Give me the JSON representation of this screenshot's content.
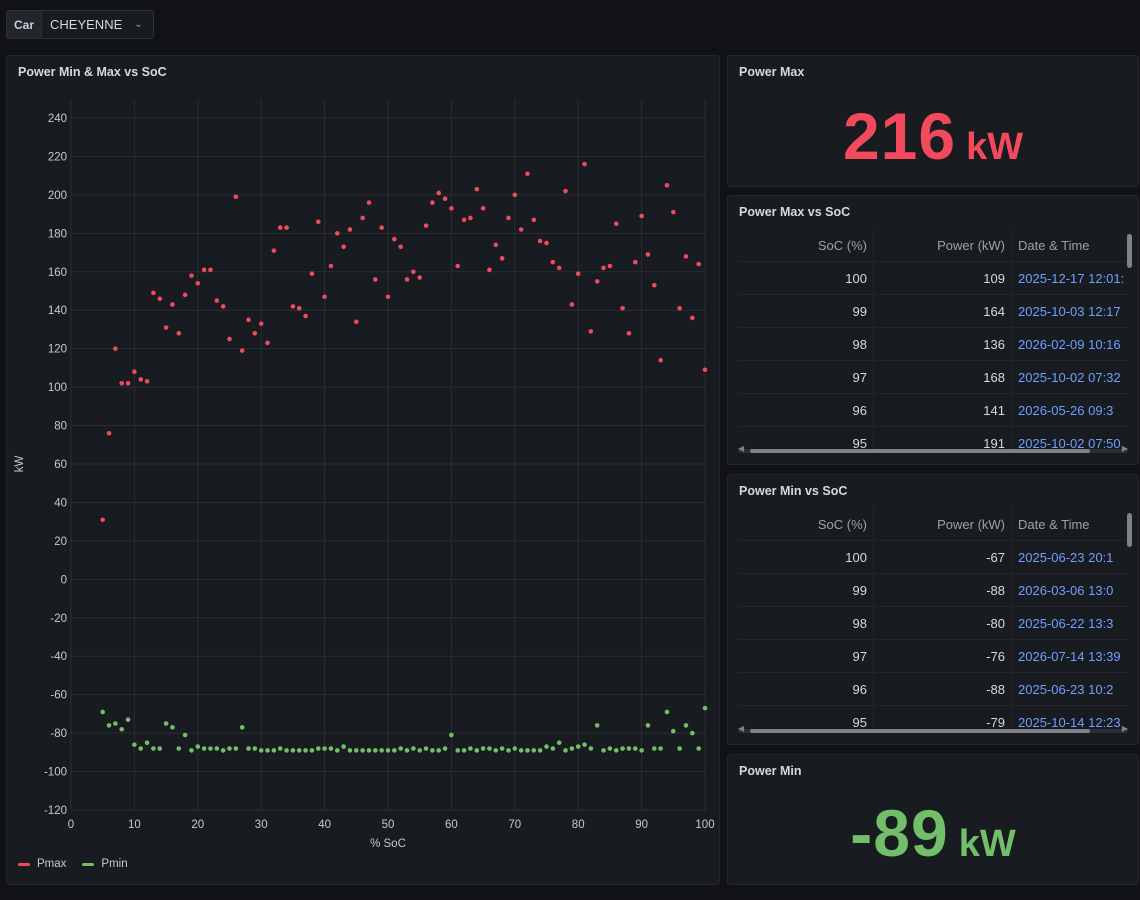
{
  "variable": {
    "label": "Car",
    "value": "CHEYENNE",
    "chevron_icon": "chevron-down-icon"
  },
  "panels": {
    "scatter": {
      "title": "Power Min & Max vs SoC"
    },
    "power_max": {
      "title": "Power Max",
      "value": "216",
      "unit": "kW",
      "color": "#f2495c"
    },
    "power_min": {
      "title": "Power Min",
      "value": "-89",
      "unit": "kW",
      "color": "#73bf69"
    },
    "table_max": {
      "title": "Power Max vs SoC",
      "headers": [
        "SoC (%)",
        "Power (kW)",
        "Date & Time"
      ],
      "rows": [
        [
          "100",
          "109",
          "2025-12-17 12:01:"
        ],
        [
          "99",
          "164",
          "2025-10-03 12:17"
        ],
        [
          "98",
          "136",
          "2026-02-09 10:16"
        ],
        [
          "97",
          "168",
          "2025-10-02 07:32"
        ],
        [
          "96",
          "141",
          "2026-05-26 09:3"
        ],
        [
          "95",
          "191",
          "2025-10-02 07:50"
        ]
      ]
    },
    "table_min": {
      "title": "Power Min vs SoC",
      "headers": [
        "SoC (%)",
        "Power (kW)",
        "Date & Time"
      ],
      "rows": [
        [
          "100",
          "-67",
          "2025-06-23 20:1"
        ],
        [
          "99",
          "-88",
          "2026-03-06 13:0"
        ],
        [
          "98",
          "-80",
          "2025-06-22 13:3"
        ],
        [
          "97",
          "-76",
          "2026-07-14 13:39"
        ],
        [
          "96",
          "-88",
          "2025-06-23 10:2"
        ],
        [
          "95",
          "-79",
          "2025-10-14 12:23"
        ]
      ]
    }
  },
  "chart_data": {
    "type": "scatter",
    "title": "Power Min & Max vs SoC",
    "xlabel": "% SoC",
    "ylabel": "kW",
    "xlim": [
      0,
      100
    ],
    "ylim": [
      -120,
      240
    ],
    "x_ticks": [
      0,
      10,
      20,
      30,
      40,
      50,
      60,
      70,
      80,
      90,
      100
    ],
    "y_ticks": [
      240,
      220,
      200,
      180,
      160,
      140,
      120,
      100,
      80,
      60,
      40,
      20,
      0,
      -20,
      -40,
      -60,
      -80,
      -100,
      -120
    ],
    "grid": true,
    "legend": "bottom-left",
    "series": [
      {
        "name": "Pmax",
        "color": "#f2495c",
        "points": [
          [
            5,
            31
          ],
          [
            6,
            76
          ],
          [
            7,
            120
          ],
          [
            8,
            102
          ],
          [
            9,
            102
          ],
          [
            10,
            108
          ],
          [
            11,
            104
          ],
          [
            12,
            103
          ],
          [
            13,
            149
          ],
          [
            14,
            146
          ],
          [
            15,
            131
          ],
          [
            16,
            143
          ],
          [
            17,
            128
          ],
          [
            18,
            148
          ],
          [
            19,
            158
          ],
          [
            20,
            154
          ],
          [
            21,
            161
          ],
          [
            22,
            161
          ],
          [
            23,
            145
          ],
          [
            24,
            142
          ],
          [
            25,
            125
          ],
          [
            26,
            199
          ],
          [
            27,
            119
          ],
          [
            28,
            135
          ],
          [
            29,
            128
          ],
          [
            30,
            133
          ],
          [
            31,
            123
          ],
          [
            32,
            171
          ],
          [
            33,
            183
          ],
          [
            34,
            183
          ],
          [
            35,
            142
          ],
          [
            36,
            141
          ],
          [
            37,
            137
          ],
          [
            38,
            159
          ],
          [
            39,
            186
          ],
          [
            40,
            147
          ],
          [
            41,
            163
          ],
          [
            42,
            180
          ],
          [
            43,
            173
          ],
          [
            44,
            182
          ],
          [
            45,
            134
          ],
          [
            46,
            188
          ],
          [
            47,
            196
          ],
          [
            48,
            156
          ],
          [
            49,
            183
          ],
          [
            50,
            147
          ],
          [
            51,
            177
          ],
          [
            52,
            173
          ],
          [
            53,
            156
          ],
          [
            54,
            160
          ],
          [
            55,
            157
          ],
          [
            56,
            184
          ],
          [
            57,
            196
          ],
          [
            58,
            201
          ],
          [
            59,
            198
          ],
          [
            60,
            193
          ],
          [
            61,
            163
          ],
          [
            62,
            187
          ],
          [
            63,
            188
          ],
          [
            64,
            203
          ],
          [
            65,
            193
          ],
          [
            66,
            161
          ],
          [
            67,
            174
          ],
          [
            68,
            167
          ],
          [
            69,
            188
          ],
          [
            70,
            200
          ],
          [
            71,
            182
          ],
          [
            72,
            211
          ],
          [
            73,
            187
          ],
          [
            74,
            176
          ],
          [
            75,
            175
          ],
          [
            76,
            165
          ],
          [
            77,
            162
          ],
          [
            78,
            202
          ],
          [
            79,
            143
          ],
          [
            80,
            159
          ],
          [
            81,
            216
          ],
          [
            82,
            129
          ],
          [
            83,
            155
          ],
          [
            84,
            162
          ],
          [
            85,
            163
          ],
          [
            86,
            185
          ],
          [
            87,
            141
          ],
          [
            88,
            128
          ],
          [
            89,
            165
          ],
          [
            90,
            189
          ],
          [
            91,
            169
          ],
          [
            92,
            153
          ],
          [
            93,
            114
          ],
          [
            94,
            205
          ],
          [
            95,
            191
          ],
          [
            96,
            141
          ],
          [
            97,
            168
          ],
          [
            98,
            136
          ],
          [
            99,
            164
          ],
          [
            100,
            109
          ]
        ]
      },
      {
        "name": "Pmin",
        "color": "#73bf69",
        "points": [
          [
            5,
            -69
          ],
          [
            6,
            -76
          ],
          [
            7,
            -75
          ],
          [
            8,
            -78
          ],
          [
            9,
            -73
          ],
          [
            10,
            -86
          ],
          [
            11,
            -88
          ],
          [
            12,
            -85
          ],
          [
            13,
            -88
          ],
          [
            14,
            -88
          ],
          [
            15,
            -75
          ],
          [
            16,
            -77
          ],
          [
            17,
            -88
          ],
          [
            18,
            -81
          ],
          [
            19,
            -89
          ],
          [
            20,
            -87
          ],
          [
            21,
            -88
          ],
          [
            22,
            -88
          ],
          [
            23,
            -88
          ],
          [
            24,
            -89
          ],
          [
            25,
            -88
          ],
          [
            26,
            -88
          ],
          [
            27,
            -77
          ],
          [
            28,
            -88
          ],
          [
            29,
            -88
          ],
          [
            30,
            -89
          ],
          [
            31,
            -89
          ],
          [
            32,
            -89
          ],
          [
            33,
            -88
          ],
          [
            34,
            -89
          ],
          [
            35,
            -89
          ],
          [
            36,
            -89
          ],
          [
            37,
            -89
          ],
          [
            38,
            -89
          ],
          [
            39,
            -88
          ],
          [
            40,
            -88
          ],
          [
            41,
            -88
          ],
          [
            42,
            -89
          ],
          [
            43,
            -87
          ],
          [
            44,
            -89
          ],
          [
            45,
            -89
          ],
          [
            46,
            -89
          ],
          [
            47,
            -89
          ],
          [
            48,
            -89
          ],
          [
            49,
            -89
          ],
          [
            50,
            -89
          ],
          [
            51,
            -89
          ],
          [
            52,
            -88
          ],
          [
            53,
            -89
          ],
          [
            54,
            -88
          ],
          [
            55,
            -89
          ],
          [
            56,
            -88
          ],
          [
            57,
            -89
          ],
          [
            58,
            -89
          ],
          [
            59,
            -88
          ],
          [
            60,
            -81
          ],
          [
            61,
            -89
          ],
          [
            62,
            -89
          ],
          [
            63,
            -88
          ],
          [
            64,
            -89
          ],
          [
            65,
            -88
          ],
          [
            66,
            -88
          ],
          [
            67,
            -89
          ],
          [
            68,
            -88
          ],
          [
            69,
            -89
          ],
          [
            70,
            -88
          ],
          [
            71,
            -89
          ],
          [
            72,
            -89
          ],
          [
            73,
            -89
          ],
          [
            74,
            -89
          ],
          [
            75,
            -87
          ],
          [
            76,
            -88
          ],
          [
            77,
            -85
          ],
          [
            78,
            -89
          ],
          [
            79,
            -88
          ],
          [
            80,
            -87
          ],
          [
            81,
            -86
          ],
          [
            82,
            -88
          ],
          [
            83,
            -76
          ],
          [
            84,
            -89
          ],
          [
            85,
            -88
          ],
          [
            86,
            -89
          ],
          [
            87,
            -88
          ],
          [
            88,
            -88
          ],
          [
            89,
            -88
          ],
          [
            90,
            -89
          ],
          [
            91,
            -76
          ],
          [
            92,
            -88
          ],
          [
            93,
            -88
          ],
          [
            94,
            -69
          ],
          [
            95,
            -79
          ],
          [
            96,
            -88
          ],
          [
            97,
            -76
          ],
          [
            98,
            -80
          ],
          [
            99,
            -88
          ],
          [
            100,
            -67
          ]
        ]
      }
    ]
  }
}
